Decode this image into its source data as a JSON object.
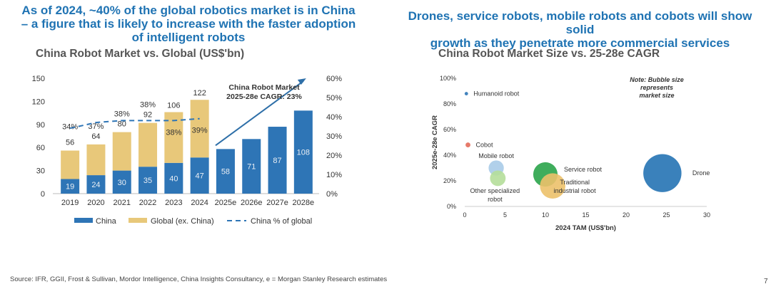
{
  "left_headline": {
    "line1": "As  of 2024, ~40% of the global robotics market is in China",
    "line2": "– a figure that is likely to increase with the faster adoption",
    "line3": "of intelligent robots"
  },
  "right_headline": {
    "line1": "Drones, service robots, mobile robots and cobots will show solid",
    "line2": "growth as they penetrate more commercial services"
  },
  "source": "Source: IFR, GGII, Frost & Sullivan, Mordor Intelligence, China Insights Consultancy, e = Morgan Stanley Research estimates",
  "page_number": "7",
  "colors": {
    "china": "#2e75b6",
    "global": "#e8c87a",
    "headline": "#1f73b3",
    "line": "#2e75b6"
  },
  "chart_data": [
    {
      "type": "bar",
      "stacked": true,
      "title": "China Robot Market vs. Global (US$'bn)",
      "categories": [
        "2019",
        "2020",
        "2021",
        "2022",
        "2023",
        "2024",
        "2025e",
        "2026e",
        "2027e",
        "2028e"
      ],
      "series": [
        {
          "name": "China",
          "values": [
            19,
            24,
            30,
            35,
            40,
            47,
            58,
            71,
            87,
            108
          ]
        },
        {
          "name": "Global (ex. China)",
          "values": [
            37,
            40,
            50,
            57,
            66,
            75,
            null,
            null,
            null,
            null
          ]
        },
        {
          "name": "China % of global",
          "axis": "right",
          "style": "dashed-line",
          "values": [
            34,
            37,
            38,
            38,
            38,
            39,
            null,
            null,
            null,
            null
          ]
        }
      ],
      "top_labels": [
        "56",
        "64",
        "80",
        "92",
        "106",
        "122"
      ],
      "pct_labels": [
        "34%",
        "37%",
        "38%",
        "38%",
        "38%",
        "39%"
      ],
      "ylim": [
        0,
        150
      ],
      "yticks": [
        "0",
        "30",
        "60",
        "90",
        "120",
        "150"
      ],
      "y2lim": [
        0,
        60
      ],
      "y2ticks": [
        "0%",
        "10%",
        "20%",
        "30%",
        "40%",
        "50%",
        "60%"
      ],
      "annotation": {
        "line1": "China Robot Market",
        "line2": "2025-28e CAGR: 23%"
      },
      "legend": [
        "China",
        "Global (ex. China)",
        "China % of global"
      ],
      "legend_position": "bottom"
    },
    {
      "type": "scatter",
      "subtype": "bubble",
      "title": "China Robot Market Size vs. 25-28e CAGR",
      "xlabel": "2024 TAM (US$'bn)",
      "ylabel": "2025e-28e CAGR",
      "xlim": [
        0,
        30
      ],
      "ylim": [
        0,
        100
      ],
      "xticks": [
        "0",
        "5",
        "10",
        "15",
        "20",
        "25",
        "30"
      ],
      "yticks": [
        "0%",
        "20%",
        "40%",
        "60%",
        "80%",
        "100%"
      ],
      "note": {
        "line1": "Note: Bubble size",
        "line2": "represents",
        "line3": "market size"
      },
      "points": [
        {
          "name": "Humanoid robot",
          "x": 0.2,
          "y": 88,
          "size": 0.2,
          "color": "#2e75b6"
        },
        {
          "name": "Cobot",
          "x": 0.4,
          "y": 48,
          "size": 0.4,
          "color": "#e36c5a"
        },
        {
          "name": "Mobile robot",
          "x": 3.9,
          "y": 30,
          "size": 3.9,
          "color": "#a9cbe8"
        },
        {
          "name": "Other specialized robot",
          "x": 4.1,
          "y": 22,
          "size": 4.1,
          "color": "#b5de9a"
        },
        {
          "name": "Service robot",
          "x": 10.0,
          "y": 25,
          "size": 10.0,
          "color": "#2aa44a"
        },
        {
          "name": "Traditional industrial robot",
          "x": 10.9,
          "y": 16,
          "size": 10.9,
          "color": "#ecc16a"
        },
        {
          "name": "Drone",
          "x": 24.5,
          "y": 26,
          "size": 24.5,
          "color": "#2573b4"
        }
      ]
    }
  ]
}
